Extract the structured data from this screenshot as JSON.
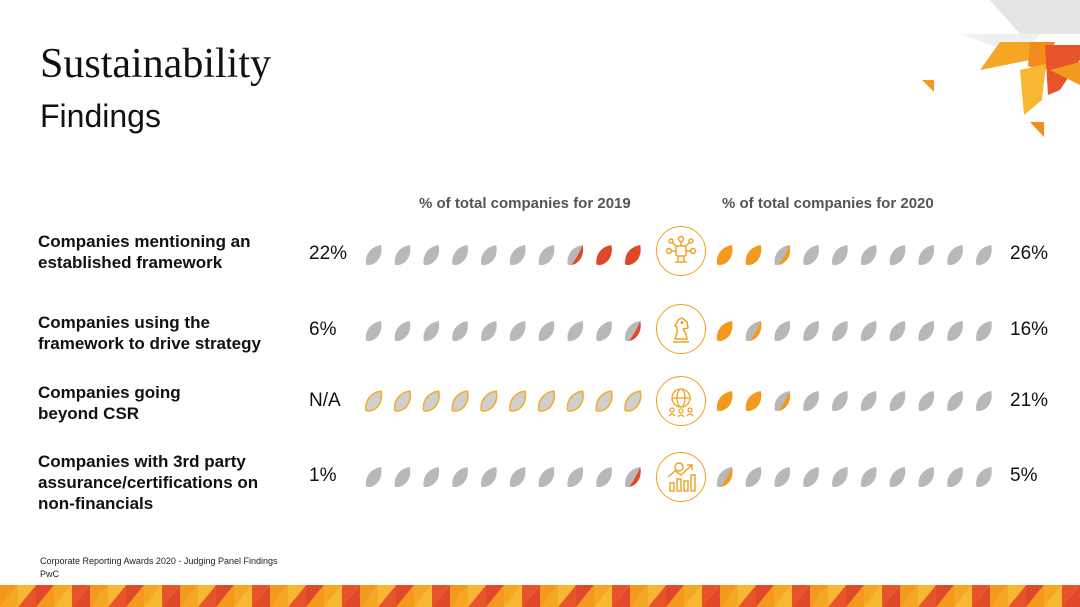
{
  "page": {
    "title": "Sustainability",
    "subtitle": "Findings",
    "footer_line1": "Corporate Reporting Awards 2020 - Judging Panel Findings",
    "footer_line2": "PwC"
  },
  "colors": {
    "grey_leaf": "#b8b8b8",
    "red_leaf": "#e0482a",
    "orange_leaf": "#f39a1e",
    "outline_leaf": "#f0b030",
    "icon_accent": "#f0a020"
  },
  "chart_data": {
    "type": "pictograph",
    "columns": [
      "% of total companies for 2019",
      "% of total companies for 2020"
    ],
    "units_per_row": 10,
    "rows": [
      {
        "label": "Companies mentioning an\nestablished framework",
        "pct_2019": "22%",
        "pct_2020": "26%",
        "filled_2019": 2.5,
        "filled_2020": 2.5,
        "icon": "network-diagram-icon"
      },
      {
        "label": "Companies using the\nframework to drive strategy",
        "pct_2019": "6%",
        "pct_2020": "16%",
        "filled_2019": 0.5,
        "filled_2020": 1.5,
        "icon": "chess-knight-icon"
      },
      {
        "label": "Companies going\nbeyond CSR",
        "pct_2019": "N/A",
        "pct_2020": "21%",
        "filled_2019": 0,
        "filled_2020": 2.5,
        "icon": "globe-people-icon"
      },
      {
        "label": "Companies with 3rd party\nassurance/certifications on\nnon-financials",
        "pct_2019": "1%",
        "pct_2020": "5%",
        "filled_2019": 0.5,
        "filled_2020": 0.5,
        "icon": "growth-chart-icon"
      }
    ]
  }
}
